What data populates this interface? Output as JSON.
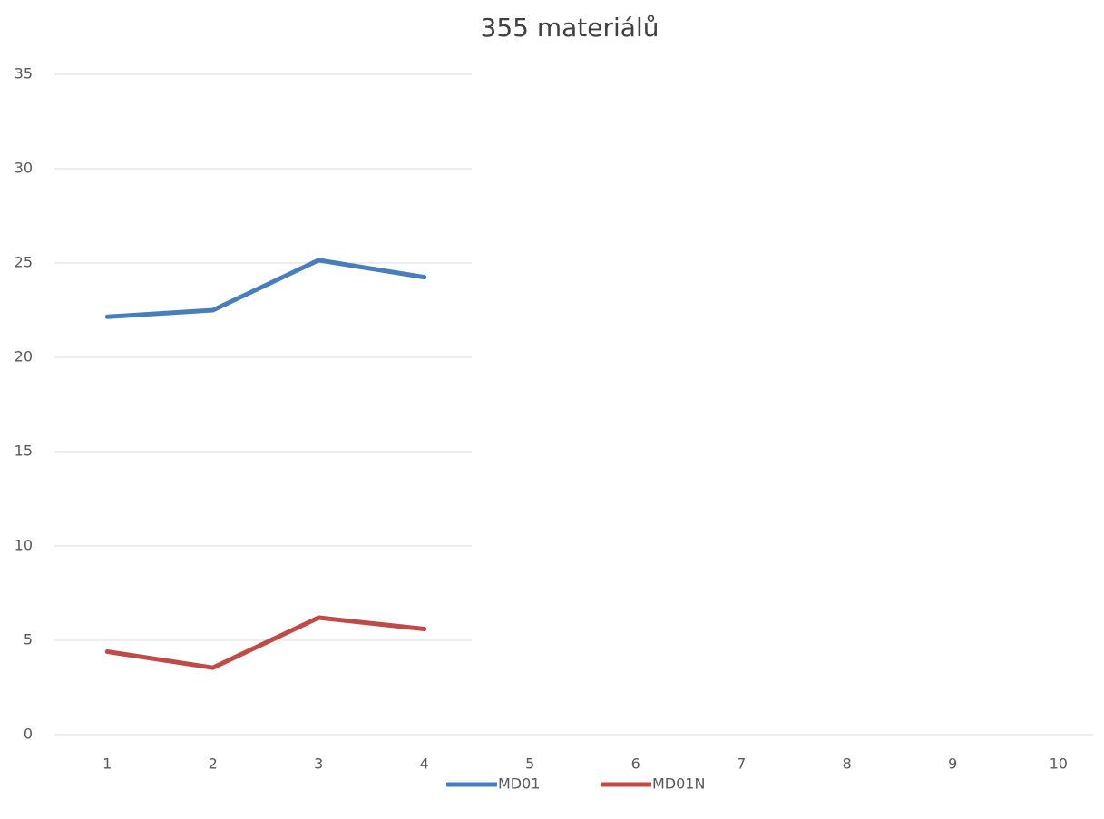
{
  "chart_data": {
    "type": "line",
    "title": "355 materiálů",
    "categories": [
      "1",
      "2",
      "3",
      "4",
      "5",
      "6",
      "7",
      "8",
      "9",
      "10"
    ],
    "series": [
      {
        "name": "MD01",
        "color": "#4a7ebb",
        "values": [
          22.15,
          22.5,
          25.15,
          24.25,
          null,
          null,
          null,
          null,
          null,
          null
        ]
      },
      {
        "name": "MD01N",
        "color": "#be4b48",
        "values": [
          4.4,
          3.55,
          6.2,
          5.6,
          null,
          null,
          null,
          null,
          null,
          null
        ]
      }
    ],
    "ylim": [
      0,
      35
    ],
    "yticks": [
      0,
      5,
      10,
      15,
      20,
      25,
      30,
      35
    ],
    "grid": true,
    "legend": "bottom"
  }
}
